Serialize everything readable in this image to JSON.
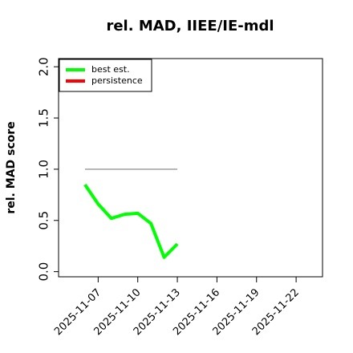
{
  "chart_data": {
    "type": "line",
    "title": "rel. MAD, IIEE/IE-mdl",
    "y_label": "rel. MAD score",
    "x": [
      "2025-11-06",
      "2025-11-07",
      "2025-11-08",
      "2025-11-09",
      "2025-11-10",
      "2025-11-11",
      "2025-11-12",
      "2025-11-13"
    ],
    "series": [
      {
        "name": "best est.",
        "color": "#00ff00",
        "values": [
          0.85,
          0.66,
          0.52,
          0.56,
          0.57,
          0.47,
          0.14,
          0.27
        ]
      },
      {
        "name": "persistence",
        "color": "#ff0000",
        "values": [
          null,
          null,
          null,
          null,
          null,
          null,
          null,
          null
        ]
      }
    ],
    "reference_line": {
      "y": 1,
      "color": "#808080",
      "x": [
        "2025-11-06",
        "2025-11-13"
      ]
    },
    "xlim": [
      "2025-11-04",
      "2025-11-24"
    ],
    "xticks": [
      "2025-11-07",
      "2025-11-10",
      "2025-11-13",
      "2025-11-16",
      "2025-11-19",
      "2025-11-22"
    ],
    "ylim": [
      -0.05,
      2.08
    ],
    "yticks": [
      {
        "value": 0,
        "label": "0.0"
      },
      {
        "value": 0.5,
        "label": "0.5"
      },
      {
        "value": 1,
        "label": "1.0"
      },
      {
        "value": 1.5,
        "label": "1.5"
      },
      {
        "value": 2,
        "label": "2.0"
      }
    ],
    "legend": "top-left"
  }
}
